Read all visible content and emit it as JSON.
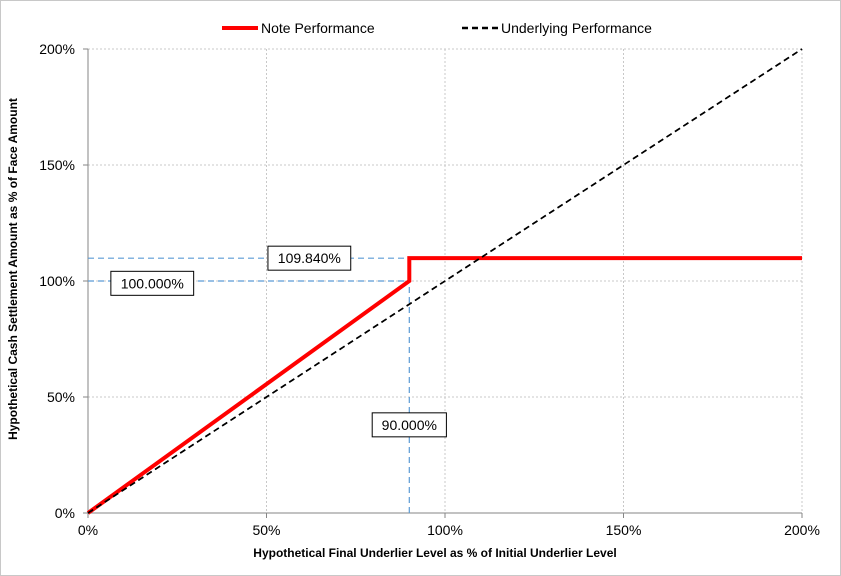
{
  "chart_data": {
    "type": "line",
    "xlabel": "Hypothetical Final Underlier Level as % of Initial Underlier Level",
    "ylabel": "Hypothetical Cash Settlement Amount as % of Face Amount",
    "xlim": [
      0,
      200
    ],
    "ylim": [
      0,
      200
    ],
    "x_ticks": [
      0,
      50,
      100,
      150,
      200
    ],
    "y_ticks": [
      0,
      50,
      100,
      150,
      200
    ],
    "x_tick_labels": [
      "0%",
      "50%",
      "100%",
      "150%",
      "200%"
    ],
    "y_tick_labels": [
      "0%",
      "50%",
      "100%",
      "150%",
      "200%"
    ],
    "grid": true,
    "legend_position": "top",
    "series": [
      {
        "name": "Note Performance",
        "color": "#ff0000",
        "style": "solid",
        "points": [
          [
            0,
            0
          ],
          [
            90,
            100
          ],
          [
            90,
            109.84
          ],
          [
            200,
            109.84
          ]
        ]
      },
      {
        "name": "Underlying Performance",
        "color": "#000000",
        "style": "dashed",
        "points": [
          [
            0,
            0
          ],
          [
            200,
            200
          ]
        ]
      }
    ],
    "reference_lines": [
      {
        "color": "#5b9bd5",
        "style": "dashed",
        "points": [
          [
            0,
            109.84
          ],
          [
            90,
            109.84
          ]
        ]
      },
      {
        "color": "#5b9bd5",
        "style": "dashed",
        "points": [
          [
            0,
            100
          ],
          [
            90,
            100
          ]
        ]
      },
      {
        "color": "#5b9bd5",
        "style": "dashed",
        "points": [
          [
            90,
            0
          ],
          [
            90,
            109.84
          ]
        ]
      }
    ],
    "annotations": [
      {
        "text": "109.840%",
        "x": 62,
        "y": 109.84
      },
      {
        "text": "100.000%",
        "x": 18,
        "y": 99
      },
      {
        "text": "90.000%",
        "x": 90,
        "y": 38
      }
    ]
  }
}
